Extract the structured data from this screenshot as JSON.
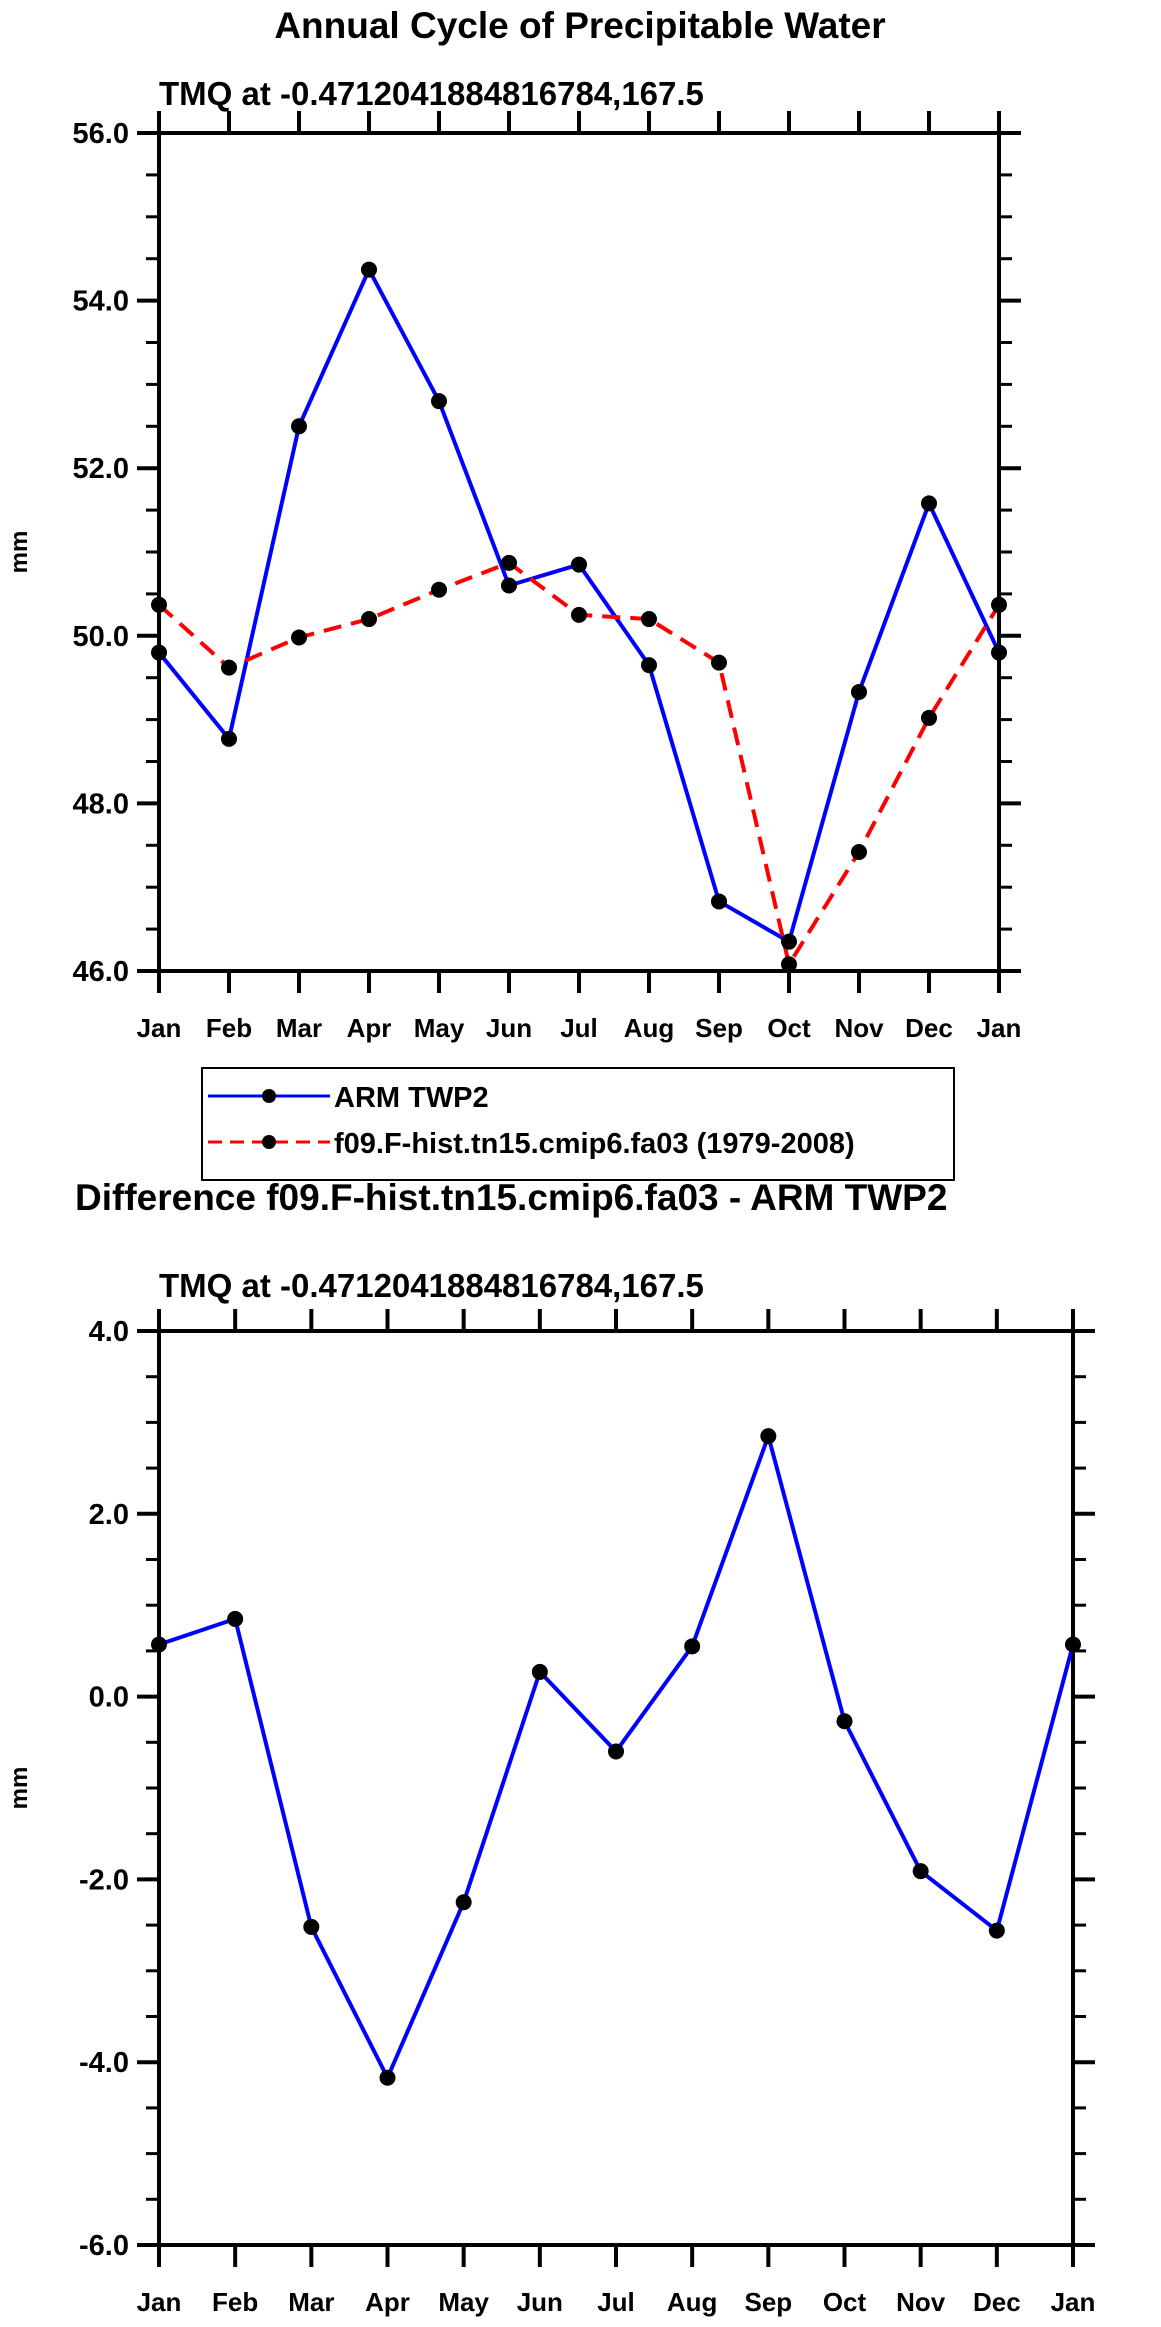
{
  "chart_data": [
    {
      "type": "line",
      "title": "Annual Cycle of Precipitable Water",
      "subtitle": "TMQ at -0.4712041884816784,167.5",
      "xlabel": "",
      "ylabel": "mm",
      "categories": [
        "Jan",
        "Feb",
        "Mar",
        "Apr",
        "May",
        "Jun",
        "Jul",
        "Aug",
        "Sep",
        "Oct",
        "Nov",
        "Dec",
        "Jan"
      ],
      "ylim": [
        46.0,
        56.0
      ],
      "yticks": [
        "46.0",
        "48.0",
        "50.0",
        "52.0",
        "54.0",
        "56.0"
      ],
      "ytick_values": [
        46,
        48,
        50,
        52,
        54,
        56
      ],
      "yminor_step": 0.5,
      "grid": false,
      "series": [
        {
          "name": "ARM TWP2",
          "color": "#0000ff",
          "dash": "solid",
          "values": [
            49.8,
            48.77,
            52.5,
            54.37,
            52.8,
            50.6,
            50.85,
            49.65,
            46.83,
            46.35,
            49.33,
            51.58,
            49.8
          ]
        },
        {
          "name": "f09.F-hist.tn15.cmip6.fa03 (1979-2008)",
          "color": "#ff0000",
          "dash": "dashed",
          "values": [
            50.37,
            49.62,
            49.98,
            50.2,
            50.55,
            50.87,
            50.25,
            50.2,
            49.68,
            46.08,
            47.42,
            49.02,
            50.37
          ]
        }
      ],
      "legend": {
        "placement": "bottom",
        "entries": [
          "ARM TWP2",
          "f09.F-hist.tn15.cmip6.fa03 (1979-2008)"
        ]
      }
    },
    {
      "type": "line",
      "title": "Difference f09.F-hist.tn15.cmip6.fa03 - ARM TWP2",
      "subtitle": "TMQ at -0.4712041884816784,167.5",
      "xlabel": "",
      "ylabel": "mm",
      "categories": [
        "Jan",
        "Feb",
        "Mar",
        "Apr",
        "May",
        "Jun",
        "Jul",
        "Aug",
        "Sep",
        "Oct",
        "Nov",
        "Dec",
        "Jan"
      ],
      "ylim": [
        -6.0,
        4.0
      ],
      "yticks": [
        "-6.0",
        "-4.0",
        "-2.0",
        "0.0",
        "2.0",
        "4.0"
      ],
      "ytick_values": [
        -6,
        -4,
        -2,
        0,
        2,
        4
      ],
      "yminor_step": 0.5,
      "grid": false,
      "series": [
        {
          "name": "Difference",
          "color": "#0000ff",
          "dash": "solid",
          "values": [
            0.57,
            0.85,
            -2.52,
            -4.17,
            -2.25,
            0.27,
            -0.6,
            0.55,
            2.85,
            -0.27,
            -1.91,
            -2.56,
            0.57
          ]
        }
      ]
    }
  ]
}
